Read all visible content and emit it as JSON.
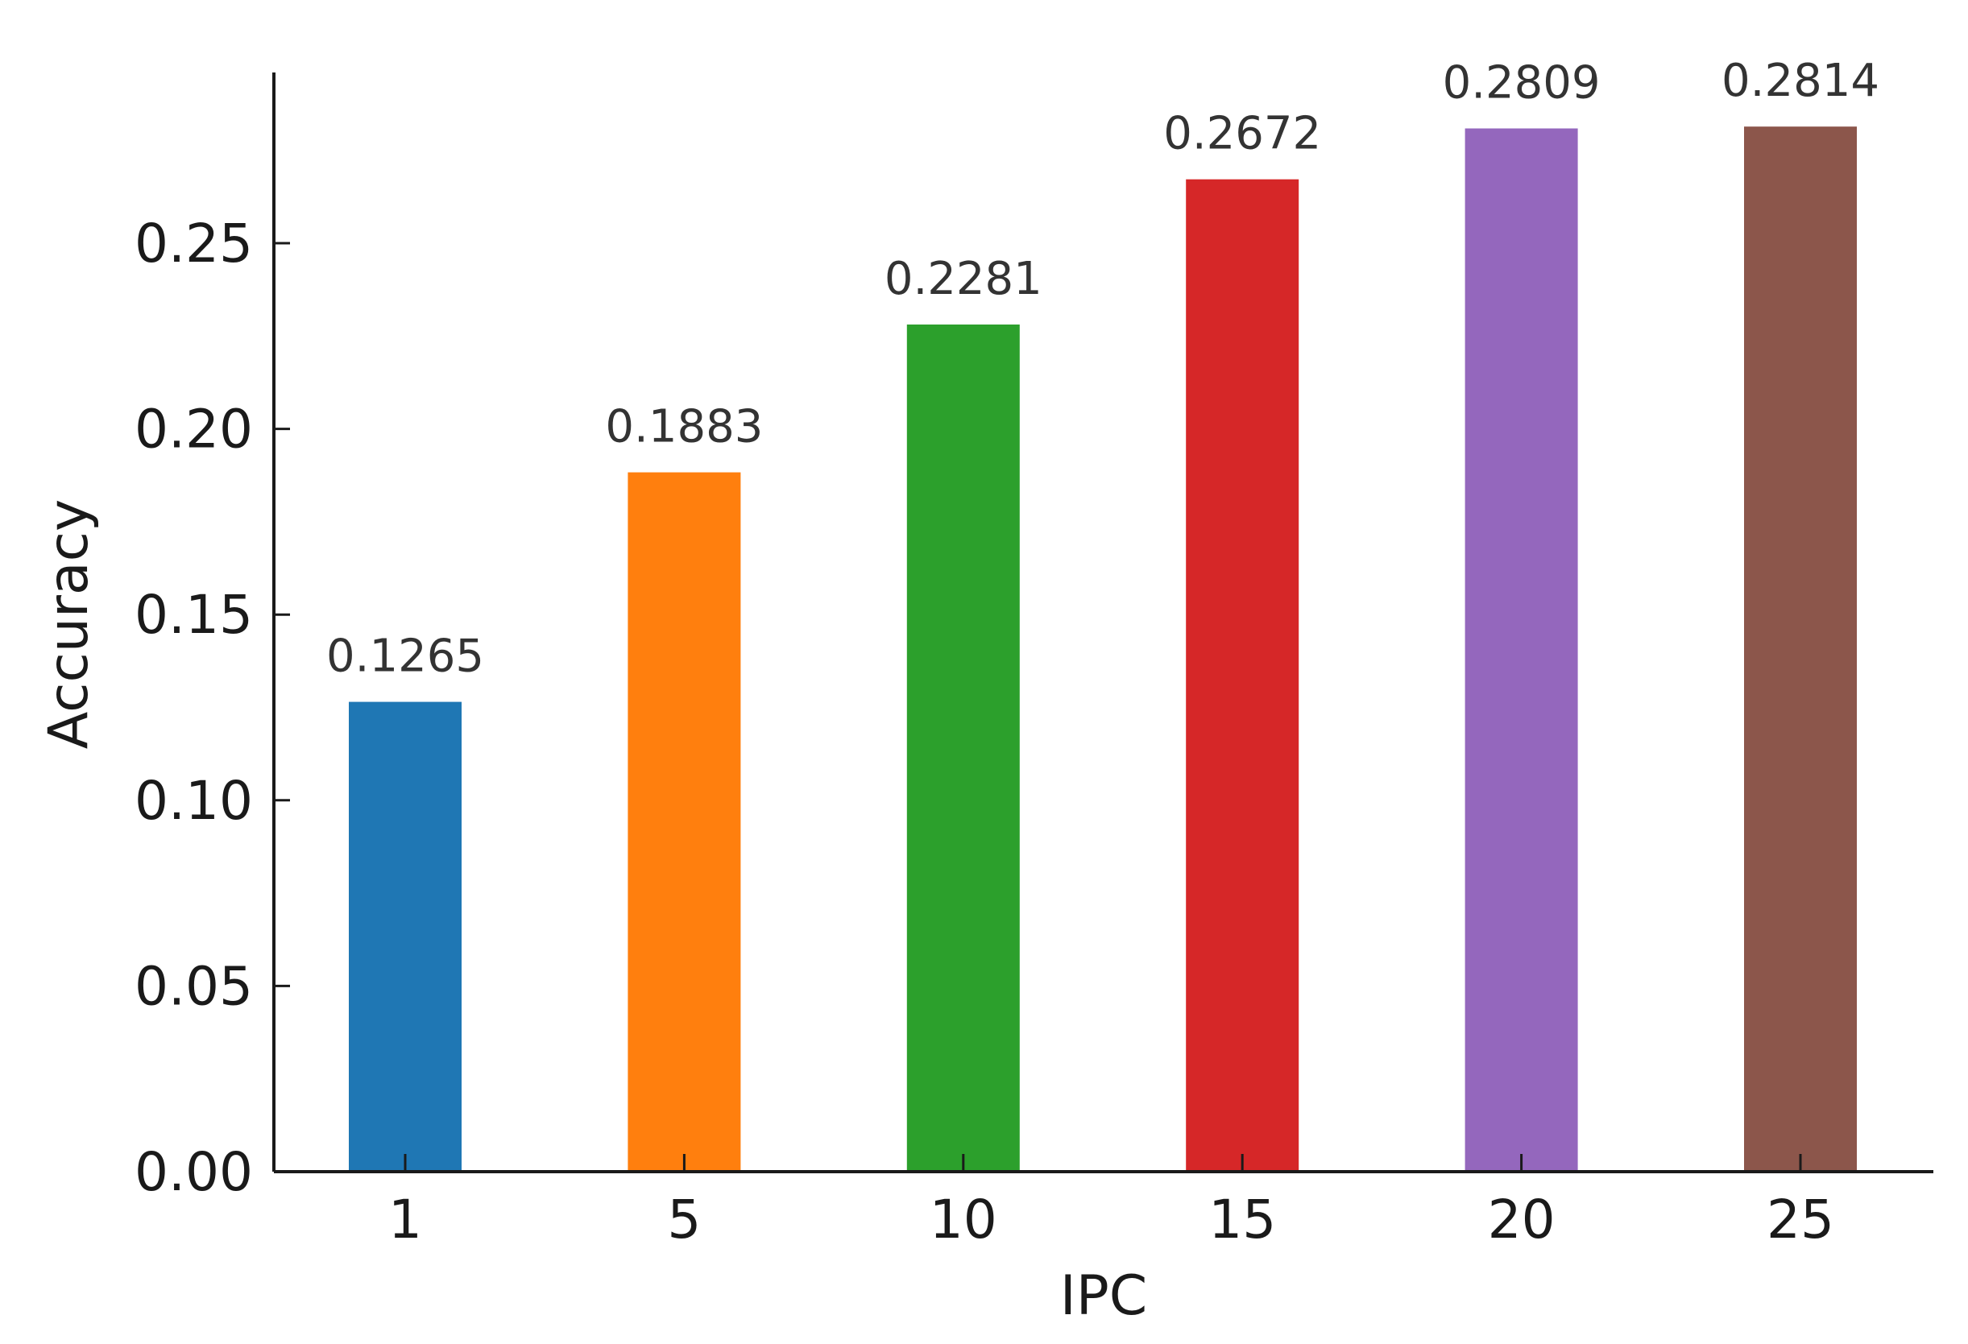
{
  "chart_data": {
    "type": "bar",
    "title": "",
    "xlabel": "IPC",
    "ylabel": "Accuracy",
    "categories": [
      "1",
      "5",
      "10",
      "15",
      "20",
      "25"
    ],
    "values": [
      0.1265,
      0.1883,
      0.2281,
      0.2672,
      0.2809,
      0.2814
    ],
    "data_labels": [
      "0.1265",
      "0.1883",
      "0.2281",
      "0.2672",
      "0.2809",
      "0.2814"
    ],
    "colors": [
      "#1f77b4",
      "#ff7f0e",
      "#2ca02c",
      "#d62728",
      "#9467bd",
      "#8c564b"
    ],
    "yticks": [
      0.0,
      0.05,
      0.1,
      0.15,
      0.2,
      0.25
    ],
    "ytick_labels": [
      "0.00",
      "0.05",
      "0.10",
      "0.15",
      "0.20",
      "0.25"
    ],
    "ylim": [
      0,
      0.296
    ],
    "grid": false,
    "legend": "none"
  }
}
